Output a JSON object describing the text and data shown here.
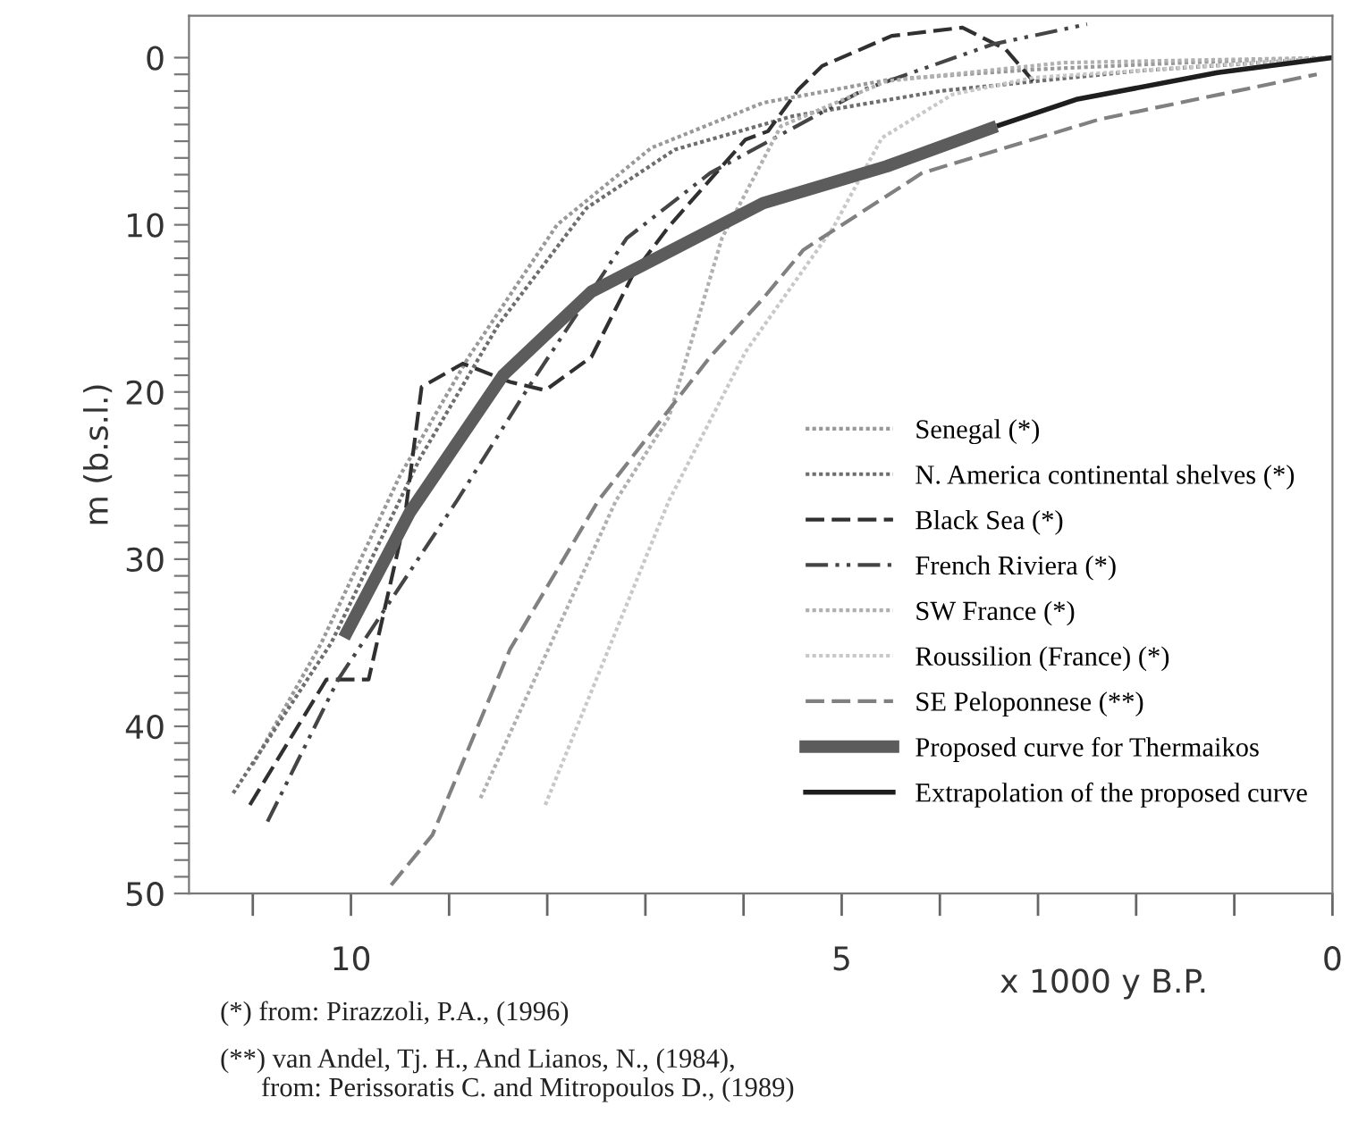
{
  "chart_data": {
    "type": "line",
    "xlabel": "x 1000 y B.P.",
    "ylabel": "m (b.s.l.)",
    "xlim": [
      11.65,
      0
    ],
    "ylim": [
      50,
      -2.5
    ],
    "xticks": [
      {
        "value": 11,
        "label": null
      },
      10,
      {
        "value": 9,
        "label": null
      },
      {
        "value": 8,
        "label": null
      },
      {
        "value": 7,
        "label": null
      },
      {
        "value": 6,
        "label": null
      },
      5,
      {
        "value": 4,
        "label": null
      },
      {
        "value": 3,
        "label": null
      },
      {
        "value": 2,
        "label": null
      },
      {
        "value": 1,
        "label": null
      },
      0
    ],
    "yticks": [
      0,
      {
        "value": 1,
        "label": null
      },
      {
        "value": 2,
        "label": null
      },
      {
        "value": 3,
        "label": null
      },
      {
        "value": 4,
        "label": null
      },
      {
        "value": 5,
        "label": null
      },
      {
        "value": 6,
        "label": null
      },
      {
        "value": 7,
        "label": null
      },
      {
        "value": 8,
        "label": null
      },
      {
        "value": 9,
        "label": null
      },
      10,
      {
        "value": 11,
        "label": null
      },
      {
        "value": 12,
        "label": null
      },
      {
        "value": 13,
        "label": null
      },
      {
        "value": 14,
        "label": null
      },
      {
        "value": 15,
        "label": null
      },
      {
        "value": 16,
        "label": null
      },
      {
        "value": 17,
        "label": null
      },
      {
        "value": 18,
        "label": null
      },
      {
        "value": 19,
        "label": null
      },
      20,
      {
        "value": 21,
        "label": null
      },
      {
        "value": 22,
        "label": null
      },
      {
        "value": 23,
        "label": null
      },
      {
        "value": 24,
        "label": null
      },
      {
        "value": 25,
        "label": null
      },
      {
        "value": 26,
        "label": null
      },
      {
        "value": 27,
        "label": null
      },
      {
        "value": 28,
        "label": null
      },
      {
        "value": 29,
        "label": null
      },
      30,
      {
        "value": 31,
        "label": null
      },
      {
        "value": 32,
        "label": null
      },
      {
        "value": 33,
        "label": null
      },
      {
        "value": 34,
        "label": null
      },
      {
        "value": 35,
        "label": null
      },
      {
        "value": 36,
        "label": null
      },
      {
        "value": 37,
        "label": null
      },
      {
        "value": 38,
        "label": null
      },
      {
        "value": 39,
        "label": null
      },
      40,
      {
        "value": 41,
        "label": null
      },
      {
        "value": 42,
        "label": null
      },
      {
        "value": 43,
        "label": null
      },
      {
        "value": 44,
        "label": null
      },
      {
        "value": 45,
        "label": null
      },
      {
        "value": 46,
        "label": null
      },
      {
        "value": 47,
        "label": null
      },
      {
        "value": 48,
        "label": null
      },
      {
        "value": 49,
        "label": null
      },
      50
    ],
    "grid": false,
    "legend": "bottom right",
    "marker": "none",
    "series": [
      {
        "name": "Senegal (*)",
        "color": "#999999",
        "line_style": "dotted",
        "x": [
          11.0,
          10.3,
          9.5,
          8.8,
          7.9,
          6.94,
          5.8,
          4.5,
          3.0,
          1.5,
          0
        ],
        "values": [
          42.3,
          35,
          25,
          17.9,
          10,
          5.4,
          2.7,
          1.3,
          0.7,
          0.3,
          0
        ]
      },
      {
        "name": "N. America continental shelves (*)",
        "color": "#6e6e6e",
        "line_style": "dotted",
        "x": [
          11.2,
          10.2,
          9.3,
          8.5,
          7.6,
          6.7,
          5.5,
          4.0,
          2.0,
          0
        ],
        "values": [
          44,
          35,
          24,
          16,
          9,
          5.5,
          3.5,
          2,
          0.8,
          0
        ]
      },
      {
        "name": "Black Sea (*)",
        "color": "#303030",
        "line_style": "dashed",
        "x": [
          11.03,
          10.25,
          9.82,
          9.46,
          9.28,
          8.86,
          8.38,
          8.02,
          7.55,
          7.12,
          6.76,
          5.98,
          5.75,
          5.44,
          5.2,
          4.49,
          3.77,
          3.33,
          3.05
        ],
        "values": [
          44.7,
          37.2,
          37.2,
          27.9,
          19.7,
          18.3,
          19.4,
          19.9,
          17.9,
          12.9,
          10.1,
          4.9,
          4.4,
          1.9,
          0.5,
          -1.3,
          -1.8,
          -0.5,
          1.4
        ]
      },
      {
        "name": "French Riviera (*)",
        "color": "#454545",
        "line_style": "dashdot",
        "x": [
          10.85,
          10.13,
          8.92,
          8.2,
          7.19,
          6.34,
          4.77,
          3.46,
          2.5
        ],
        "values": [
          45.7,
          37.2,
          26.5,
          19.8,
          10.8,
          6.9,
          1.9,
          -0.8,
          -2.0
        ]
      },
      {
        "name": "SW France (*)",
        "color": "#b0b0b0",
        "line_style": "dotted",
        "x": [
          8.68,
          7.3,
          6.76,
          6.22,
          5.62,
          4.54,
          2.74,
          0
        ],
        "values": [
          44.3,
          26.5,
          21.5,
          10.8,
          4.1,
          1.4,
          0.3,
          0
        ]
      },
      {
        "name": "Roussilion (France) (*)",
        "color": "#c8c8c8",
        "line_style": "dotted",
        "x": [
          8.02,
          6.76,
          5.98,
          5.08,
          4.59,
          3.87,
          3.05,
          0
        ],
        "values": [
          44.7,
          26.5,
          17.6,
          10.1,
          4.8,
          2.2,
          1.2,
          0
        ]
      },
      {
        "name": "SE Peloponnese (**)",
        "color": "#808080",
        "line_style": "dashed",
        "x": [
          9.59,
          9.17,
          8.38,
          7.48,
          6.34,
          5.8,
          5.39,
          4.18,
          2.38,
          0.16
        ],
        "values": [
          49.5,
          46.5,
          35.4,
          26.5,
          17.9,
          14.4,
          11.5,
          6.9,
          3.7,
          1.0
        ]
      },
      {
        "name": "Proposed curve for Thermaikos",
        "color": "#5c5c5c",
        "line_style": "solid",
        "x": [
          10.07,
          9.4,
          8.45,
          7.55,
          5.8,
          4.54,
          3.42
        ],
        "values": [
          34.7,
          27.2,
          19.0,
          14.0,
          8.7,
          6.5,
          4.1
        ]
      },
      {
        "name": "Extrapolation of the proposed curve",
        "color": "#1e1e1e",
        "line_style": "solid",
        "x": [
          3.42,
          2.61,
          1.17,
          0
        ],
        "values": [
          4.1,
          2.5,
          0.9,
          0
        ]
      }
    ],
    "annotations": [
      "(*) from: Pirazzoli, P.A., (1996)",
      "(**) van Andel, Tj. H., And Lianos, N., (1984),\n      from: Perissoratis C. and Mitropoulos D., (1989)"
    ]
  }
}
